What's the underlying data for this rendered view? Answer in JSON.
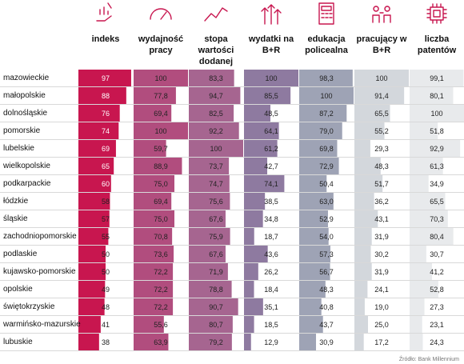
{
  "chart_data": {
    "type": "table",
    "columns": [
      {
        "label": "indeks",
        "icon": "hand-chart-icon",
        "color": "#c8164f"
      },
      {
        "label": "wydajność pracy",
        "icon": "gauge-icon",
        "color": "#b14d7e"
      },
      {
        "label": "stopa wartości dodanej",
        "icon": "trend-line-icon",
        "color": "#a66590"
      },
      {
        "label": "wydatki na B+R",
        "icon": "growth-arrows-icon",
        "color": "#8e7aa0"
      },
      {
        "label": "edukacja policealna",
        "icon": "calculator-icon",
        "color": "#9ea3b5"
      },
      {
        "label": "pracujący w B+R",
        "icon": "workers-icon",
        "color": "#d3d7dc"
      },
      {
        "label": "liczba patentów",
        "icon": "chip-icon",
        "color": "#e8eaec"
      }
    ],
    "rows": [
      {
        "region": "mazowieckie",
        "values": [
          "97",
          "100",
          "83,3",
          "100",
          "98,3",
          "100",
          "99,1"
        ]
      },
      {
        "region": "małopolskie",
        "values": [
          "88",
          "77,8",
          "94,7",
          "85,5",
          "100",
          "91,4",
          "80,1"
        ]
      },
      {
        "region": "dolnośląskie",
        "values": [
          "76",
          "69,4",
          "82,5",
          "48,5",
          "87,2",
          "65,5",
          "100"
        ]
      },
      {
        "region": "pomorskie",
        "values": [
          "74",
          "100",
          "92,2",
          "64,1",
          "79,0",
          "55,2",
          "51,8"
        ]
      },
      {
        "region": "lubelskie",
        "values": [
          "69",
          "59,7",
          "100",
          "61,2",
          "69,8",
          "29,3",
          "92,9"
        ]
      },
      {
        "region": "wielkopolskie",
        "values": [
          "65",
          "88,9",
          "73,7",
          "42,7",
          "72,9",
          "48,3",
          "61,3"
        ]
      },
      {
        "region": "podkarpackie",
        "values": [
          "60",
          "75,0",
          "74,7",
          "74,1",
          "50,4",
          "51,7",
          "34,9"
        ]
      },
      {
        "region": "łódzkie",
        "values": [
          "58",
          "69,4",
          "75,6",
          "38,5",
          "63,0",
          "36,2",
          "65,5"
        ]
      },
      {
        "region": "śląskie",
        "values": [
          "57",
          "75,0",
          "67,6",
          "34,8",
          "52,9",
          "43,1",
          "70,3"
        ]
      },
      {
        "region": "zachodniopomorskie",
        "values": [
          "55",
          "70,8",
          "75,9",
          "18,7",
          "54,0",
          "31,9",
          "80,4"
        ]
      },
      {
        "region": "podlaskie",
        "values": [
          "50",
          "73,6",
          "67,6",
          "43,6",
          "57,3",
          "30,2",
          "30,7"
        ]
      },
      {
        "region": "kujawsko-pomorskie",
        "values": [
          "50",
          "72,2",
          "71,9",
          "26,2",
          "56,7",
          "31,9",
          "41,2"
        ]
      },
      {
        "region": "opolskie",
        "values": [
          "49",
          "72,2",
          "78,8",
          "18,4",
          "48,3",
          "24,1",
          "52,8"
        ]
      },
      {
        "region": "świętokrzyskie",
        "values": [
          "48",
          "72,2",
          "90,7",
          "35,1",
          "40,8",
          "19,0",
          "27,3"
        ]
      },
      {
        "region": "warmińsko-mazurskie",
        "values": [
          "41",
          "55,6",
          "80,7",
          "18,5",
          "43,7",
          "25,0",
          "23,1"
        ]
      },
      {
        "region": "lubuskie",
        "values": [
          "38",
          "63,9",
          "79,2",
          "12,9",
          "30,9",
          "17,2",
          "24,3"
        ]
      }
    ],
    "value_max": 100
  },
  "source": "Źródło: Bank Millennium"
}
